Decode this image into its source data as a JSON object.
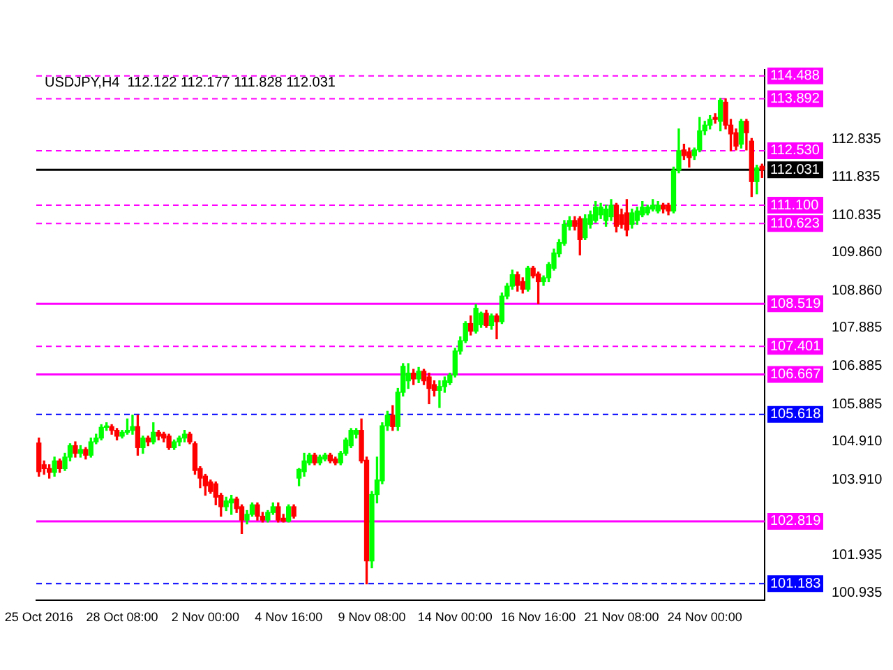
{
  "chart_data": {
    "type": "candlestick",
    "title": "USDJPY,H4  112.122 112.177 111.828 112.031",
    "categories": [
      "25 Oct 2016",
      null,
      null,
      null,
      null,
      null,
      null,
      null,
      null,
      null,
      null,
      null,
      null,
      null,
      null,
      null,
      "28 Oct 08:00",
      null,
      null,
      null,
      null,
      null,
      null,
      null,
      null,
      null,
      null,
      null,
      null,
      null,
      null,
      null,
      "2 Nov 00:00",
      null,
      null,
      null,
      null,
      null,
      null,
      null,
      null,
      null,
      null,
      null,
      null,
      null,
      null,
      null,
      "4 Nov 16:00",
      null,
      null,
      null,
      null,
      null,
      null,
      null,
      null,
      null,
      null,
      null,
      null,
      null,
      null,
      null,
      "9 Nov 08:00",
      null,
      null,
      null,
      null,
      null,
      null,
      null,
      null,
      null,
      null,
      null,
      null,
      null,
      null,
      null,
      "14 Nov 00:00",
      null,
      null,
      null,
      null,
      null,
      null,
      null,
      null,
      null,
      null,
      null,
      null,
      null,
      null,
      null,
      "16 Nov 16:00",
      null,
      null,
      null,
      null,
      null,
      null,
      null,
      null,
      null,
      null,
      null,
      null,
      null,
      null,
      null,
      "21 Nov 08:00",
      null,
      null,
      null,
      null,
      null,
      null,
      null,
      null,
      null,
      null,
      null,
      null,
      null,
      null,
      null,
      "24 Nov 00:00",
      null,
      null,
      null,
      null,
      null,
      null,
      null,
      null,
      null,
      null,
      null
    ],
    "ohlc": [
      [
        104.87,
        105.0,
        104.0,
        104.12
      ],
      [
        104.3,
        104.4,
        104.05,
        104.2
      ],
      [
        104.2,
        104.3,
        103.95,
        104.1
      ],
      [
        104.1,
        104.5,
        104.0,
        104.4
      ],
      [
        104.4,
        104.45,
        104.1,
        104.2
      ],
      [
        104.2,
        104.6,
        104.15,
        104.5
      ],
      [
        104.5,
        104.85,
        104.4,
        104.8
      ],
      [
        104.8,
        104.9,
        104.5,
        104.6
      ],
      [
        104.6,
        104.8,
        104.5,
        104.7
      ],
      [
        104.7,
        104.75,
        104.45,
        104.55
      ],
      [
        104.55,
        105.0,
        104.5,
        104.9
      ],
      [
        104.9,
        105.1,
        104.85,
        105.0
      ],
      [
        105.0,
        105.35,
        104.95,
        105.28
      ],
      [
        105.28,
        105.4,
        105.2,
        105.3
      ],
      [
        105.3,
        105.35,
        105.1,
        105.2
      ],
      [
        105.2,
        105.25,
        104.95,
        105.05
      ],
      [
        105.05,
        105.2,
        105.0,
        105.15
      ],
      [
        105.15,
        105.5,
        105.1,
        105.2
      ],
      [
        105.2,
        105.6,
        105.1,
        105.3
      ],
      [
        105.3,
        105.6,
        104.55,
        104.75
      ],
      [
        104.75,
        105.05,
        104.6,
        105.0
      ],
      [
        105.0,
        105.05,
        104.8,
        104.9
      ],
      [
        104.9,
        105.4,
        104.85,
        105.15
      ],
      [
        105.15,
        105.2,
        104.95,
        105.05
      ],
      [
        105.1,
        105.15,
        104.9,
        105.0
      ],
      [
        105.05,
        105.1,
        104.7,
        104.75
      ],
      [
        104.75,
        104.95,
        104.7,
        104.9
      ],
      [
        104.9,
        105.05,
        104.8,
        105.0
      ],
      [
        105.0,
        105.2,
        104.9,
        105.1
      ],
      [
        105.1,
        105.15,
        104.85,
        104.9
      ],
      [
        104.85,
        104.9,
        104.05,
        104.15
      ],
      [
        104.2,
        104.25,
        103.7,
        103.95
      ],
      [
        104.0,
        104.05,
        103.5,
        103.75
      ],
      [
        103.85,
        103.9,
        103.55,
        103.6
      ],
      [
        103.8,
        103.85,
        103.25,
        103.45
      ],
      [
        103.5,
        103.55,
        102.95,
        103.2
      ],
      [
        103.2,
        103.45,
        103.1,
        103.35
      ],
      [
        103.3,
        103.5,
        103.0,
        103.4
      ],
      [
        103.4,
        103.45,
        103.05,
        103.15
      ],
      [
        103.2,
        103.25,
        102.5,
        102.85
      ],
      [
        102.85,
        103.1,
        102.75,
        103.0
      ],
      [
        103.0,
        103.3,
        102.95,
        103.25
      ],
      [
        103.25,
        103.3,
        102.85,
        102.95
      ],
      [
        102.95,
        103.05,
        102.8,
        102.85
      ],
      [
        102.85,
        103.1,
        102.8,
        103.05
      ],
      [
        103.05,
        103.3,
        103.0,
        103.2
      ],
      [
        103.2,
        103.3,
        102.8,
        102.85
      ],
      [
        102.9,
        103.0,
        102.8,
        102.82
      ],
      [
        102.82,
        103.25,
        102.8,
        103.2
      ],
      [
        103.2,
        103.25,
        102.9,
        102.95
      ],
      [
        103.95,
        104.2,
        103.75,
        104.18
      ],
      [
        104.12,
        104.6,
        104.0,
        104.4
      ],
      [
        104.35,
        104.6,
        104.3,
        104.55
      ],
      [
        104.55,
        104.6,
        104.3,
        104.35
      ],
      [
        104.35,
        104.55,
        104.3,
        104.5
      ],
      [
        104.45,
        104.6,
        104.4,
        104.55
      ],
      [
        104.55,
        104.6,
        104.35,
        104.4
      ],
      [
        104.45,
        104.5,
        104.3,
        104.35
      ],
      [
        104.35,
        104.65,
        104.3,
        104.6
      ],
      [
        104.6,
        105.0,
        104.55,
        104.95
      ],
      [
        104.8,
        105.25,
        104.75,
        105.2
      ],
      [
        105.1,
        105.25,
        105.0,
        105.2
      ],
      [
        105.2,
        105.5,
        104.35,
        104.4
      ],
      [
        104.42,
        104.5,
        101.18,
        101.78
      ],
      [
        101.78,
        103.6,
        101.6,
        103.52
      ],
      [
        103.52,
        104.5,
        103.3,
        103.9
      ],
      [
        103.88,
        105.4,
        103.8,
        105.32
      ],
      [
        105.32,
        105.7,
        105.2,
        105.6
      ],
      [
        105.6,
        105.85,
        105.2,
        105.3
      ],
      [
        105.3,
        106.3,
        105.2,
        106.2
      ],
      [
        106.2,
        106.95,
        106.1,
        106.88
      ],
      [
        106.5,
        106.95,
        106.3,
        106.7
      ],
      [
        106.7,
        106.8,
        106.4,
        106.55
      ],
      [
        106.55,
        106.85,
        106.45,
        106.75
      ],
      [
        106.75,
        106.8,
        106.4,
        106.5
      ],
      [
        106.6,
        106.7,
        105.9,
        106.3
      ],
      [
        106.4,
        106.5,
        106.1,
        106.25
      ],
      [
        106.25,
        106.5,
        105.8,
        106.35
      ],
      [
        106.35,
        106.6,
        106.2,
        106.5
      ],
      [
        106.45,
        106.7,
        106.4,
        106.65
      ],
      [
        106.65,
        107.35,
        106.6,
        107.28
      ],
      [
        107.28,
        107.65,
        107.2,
        107.55
      ],
      [
        107.55,
        108.05,
        107.5,
        108.0
      ],
      [
        108.0,
        108.2,
        107.7,
        107.8
      ],
      [
        107.8,
        108.5,
        107.75,
        108.4
      ],
      [
        107.97,
        108.3,
        107.9,
        108.27
      ],
      [
        108.27,
        108.35,
        107.9,
        107.95
      ],
      [
        107.95,
        108.25,
        107.85,
        108.2
      ],
      [
        108.2,
        108.25,
        107.6,
        108.05
      ],
      [
        108.05,
        108.8,
        108.0,
        108.72
      ],
      [
        108.72,
        109.05,
        108.65,
        108.98
      ],
      [
        108.98,
        109.4,
        108.9,
        109.28
      ],
      [
        109.28,
        109.35,
        108.85,
        109.0
      ],
      [
        109.1,
        109.2,
        108.8,
        108.9
      ],
      [
        108.9,
        109.5,
        108.85,
        109.45
      ],
      [
        109.45,
        109.5,
        109.2,
        109.25
      ],
      [
        109.3,
        109.35,
        108.52,
        109.1
      ],
      [
        109.1,
        109.25,
        109.0,
        109.2
      ],
      [
        109.2,
        109.6,
        109.1,
        109.55
      ],
      [
        109.45,
        109.95,
        109.4,
        109.85
      ],
      [
        109.83,
        110.2,
        109.75,
        110.12
      ],
      [
        110.1,
        110.7,
        110.05,
        110.6
      ],
      [
        110.55,
        110.8,
        110.45,
        110.7
      ],
      [
        110.7,
        110.8,
        110.45,
        110.55
      ],
      [
        110.75,
        110.8,
        109.8,
        110.2
      ],
      [
        110.25,
        110.85,
        110.2,
        110.75
      ],
      [
        110.6,
        110.95,
        110.5,
        110.85
      ],
      [
        110.7,
        111.2,
        110.65,
        111.05
      ],
      [
        110.85,
        111.15,
        110.75,
        111.05
      ],
      [
        110.7,
        111.1,
        110.55,
        111.0
      ],
      [
        110.8,
        111.25,
        110.7,
        111.1
      ],
      [
        111.1,
        111.15,
        110.4,
        110.55
      ],
      [
        110.85,
        111.0,
        110.5,
        110.6
      ],
      [
        110.9,
        111.25,
        110.3,
        110.45
      ],
      [
        110.6,
        111.0,
        110.5,
        110.9
      ],
      [
        110.7,
        111.05,
        110.6,
        110.95
      ],
      [
        110.85,
        111.2,
        110.8,
        111.05
      ],
      [
        110.9,
        111.1,
        110.85,
        111.05
      ],
      [
        111.0,
        111.25,
        110.95,
        111.1
      ],
      [
        110.95,
        111.2,
        110.9,
        111.1
      ],
      [
        111.1,
        111.15,
        110.9,
        111.0
      ],
      [
        111.1,
        111.15,
        110.85,
        110.95
      ],
      [
        110.95,
        112.1,
        110.9,
        112.02
      ],
      [
        112.02,
        113.1,
        111.95,
        112.53
      ],
      [
        112.55,
        112.7,
        112.3,
        112.4
      ],
      [
        112.5,
        112.6,
        112.1,
        112.35
      ],
      [
        112.4,
        112.6,
        112.3,
        112.55
      ],
      [
        112.55,
        113.4,
        112.5,
        113.05
      ],
      [
        113.05,
        113.3,
        112.95,
        113.2
      ],
      [
        113.2,
        113.45,
        113.1,
        113.35
      ],
      [
        113.4,
        113.5,
        113.25,
        113.35
      ],
      [
        113.3,
        113.9,
        113.05,
        113.85
      ],
      [
        113.8,
        113.89,
        113.1,
        113.2
      ],
      [
        113.2,
        113.35,
        112.53,
        112.97
      ],
      [
        113.0,
        113.1,
        112.55,
        112.65
      ],
      [
        112.7,
        113.35,
        112.6,
        113.3
      ],
      [
        113.3,
        113.35,
        112.55,
        113.0
      ],
      [
        112.78,
        112.85,
        111.33,
        111.72
      ],
      [
        111.72,
        112.15,
        111.4,
        112.08
      ],
      [
        112.122,
        112.177,
        111.828,
        112.031
      ]
    ],
    "colors": [
      "#ff0000",
      "#ff0000",
      "#ff0000",
      "#00ff00",
      "#ff0000",
      "#00ff00",
      "#00ff00",
      "#ff0000",
      "#00ff00",
      "#ff0000",
      "#00ff00",
      "#00ff00",
      "#00ff00",
      "#00ff00",
      "#ff0000",
      "#ff0000",
      "#00ff00",
      "#00ff00",
      "#00ff00",
      "#ff0000",
      "#00ff00",
      "#ff0000",
      "#00ff00",
      "#ff0000",
      "#ff0000",
      "#ff0000",
      "#00ff00",
      "#00ff00",
      "#00ff00",
      "#ff0000",
      "#ff0000",
      "#ff0000",
      "#ff0000",
      "#ff0000",
      "#ff0000",
      "#ff0000",
      "#00ff00",
      "#00ff00",
      "#ff0000",
      "#ff0000",
      "#00ff00",
      "#00ff00",
      "#ff0000",
      "#ff0000",
      "#00ff00",
      "#00ff00",
      "#ff0000",
      "#ff0000",
      "#00ff00",
      "#ff0000",
      "#00ff00",
      "#00ff00",
      "#00ff00",
      "#ff0000",
      "#00ff00",
      "#00ff00",
      "#ff0000",
      "#ff0000",
      "#00ff00",
      "#00ff00",
      "#00ff00",
      "#00ff00",
      "#ff0000",
      "#ff0000",
      "#00ff00",
      "#00ff00",
      "#00ff00",
      "#00ff00",
      "#ff0000",
      "#00ff00",
      "#00ff00",
      "#00ff00",
      "#ff0000",
      "#00ff00",
      "#ff0000",
      "#ff0000",
      "#ff0000",
      "#00ff00",
      "#00ff00",
      "#00ff00",
      "#00ff00",
      "#00ff00",
      "#00ff00",
      "#ff0000",
      "#00ff00",
      "#00ff00",
      "#ff0000",
      "#00ff00",
      "#ff0000",
      "#00ff00",
      "#00ff00",
      "#00ff00",
      "#ff0000",
      "#ff0000",
      "#00ff00",
      "#ff0000",
      "#ff0000",
      "#00ff00",
      "#00ff00",
      "#00ff00",
      "#00ff00",
      "#00ff00",
      "#00ff00",
      "#ff0000",
      "#ff0000",
      "#00ff00",
      "#00ff00",
      "#00ff00",
      "#00ff00",
      "#00ff00",
      "#00ff00",
      "#ff0000",
      "#ff0000",
      "#ff0000",
      "#00ff00",
      "#00ff00",
      "#00ff00",
      "#00ff00",
      "#00ff00",
      "#00ff00",
      "#ff0000",
      "#ff0000",
      "#00ff00",
      "#00ff00",
      "#ff0000",
      "#ff0000",
      "#00ff00",
      "#00ff00",
      "#00ff00",
      "#00ff00",
      "#ff0000",
      "#00ff00",
      "#ff0000",
      "#ff0000",
      "#ff0000",
      "#00ff00",
      "#ff0000",
      "#ff0000",
      "#00ff00",
      "#ff0000"
    ],
    "ylim": [
      100.75,
      114.65
    ],
    "yticks": [
      {
        "value": 100.935,
        "label": "100.935"
      },
      {
        "value": 101.935,
        "label": "101.935"
      },
      {
        "value": 103.91,
        "label": "103.910"
      },
      {
        "value": 104.91,
        "label": "104.910"
      },
      {
        "value": 105.885,
        "label": "105.885"
      },
      {
        "value": 106.885,
        "label": "106.885"
      },
      {
        "value": 107.885,
        "label": "107.885"
      },
      {
        "value": 108.86,
        "label": "108.860"
      },
      {
        "value": 109.86,
        "label": "109.860"
      },
      {
        "value": 110.835,
        "label": "110.835"
      },
      {
        "value": 111.835,
        "label": "111.835"
      },
      {
        "value": 112.835,
        "label": "112.835"
      }
    ],
    "ref_lines": [
      {
        "axis": "y",
        "value": 114.488,
        "label": "114.488",
        "color": "#ff00ff",
        "line_style": "dashed"
      },
      {
        "axis": "y",
        "value": 113.892,
        "label": "113.892",
        "color": "#ff00ff",
        "line_style": "dashed"
      },
      {
        "axis": "y",
        "value": 112.53,
        "label": "112.530",
        "color": "#ff00ff",
        "line_style": "dashed"
      },
      {
        "axis": "y",
        "value": 112.031,
        "label": "112.031",
        "color": "#000000",
        "line_style": "solid"
      },
      {
        "axis": "y",
        "value": 111.1,
        "label": "111.100",
        "color": "#ff00ff",
        "line_style": "dashed"
      },
      {
        "axis": "y",
        "value": 110.623,
        "label": "110.623",
        "color": "#ff00ff",
        "line_style": "dashed"
      },
      {
        "axis": "y",
        "value": 108.519,
        "label": "108.519",
        "color": "#ff00ff",
        "line_style": "solid"
      },
      {
        "axis": "y",
        "value": 107.401,
        "label": "107.401",
        "color": "#ff00ff",
        "line_style": "dashed"
      },
      {
        "axis": "y",
        "value": 106.667,
        "label": "106.667",
        "color": "#ff00ff",
        "line_style": "solid"
      },
      {
        "axis": "y",
        "value": 105.618,
        "label": "105.618",
        "color": "#0000ff",
        "line_style": "dashed"
      },
      {
        "axis": "y",
        "value": 102.819,
        "label": "102.819",
        "color": "#ff00ff",
        "line_style": "solid"
      },
      {
        "axis": "y",
        "value": 101.183,
        "label": "101.183",
        "color": "#0000ff",
        "line_style": "dashed"
      }
    ],
    "grid": false,
    "legend": false
  }
}
